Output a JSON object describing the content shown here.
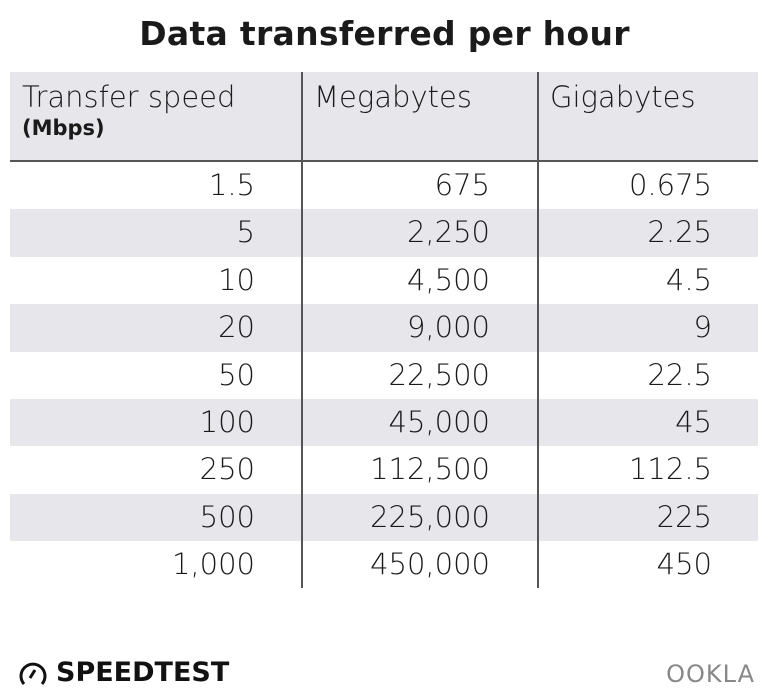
{
  "chart_data": {
    "type": "table",
    "title": "Data transferred per hour",
    "columns": [
      {
        "label": "Transfer speed",
        "sublabel": "(Mbps)"
      },
      {
        "label": "Megabytes"
      },
      {
        "label": "Gigabytes"
      }
    ],
    "rows": [
      [
        "1.5",
        "675",
        "0.675"
      ],
      [
        "5",
        "2,250",
        "2.25"
      ],
      [
        "10",
        "4,500",
        "4.5"
      ],
      [
        "20",
        "9,000",
        "9"
      ],
      [
        "50",
        "22,500",
        "22.5"
      ],
      [
        "100",
        "45,000",
        "45"
      ],
      [
        "250",
        "112,500",
        "112.5"
      ],
      [
        "500",
        "225,000",
        "225"
      ],
      [
        "1,000",
        "450,000",
        "450"
      ]
    ]
  },
  "footer": {
    "left_logo": "SPEEDTEST",
    "right_logo": "OOKLA"
  },
  "colors": {
    "row_alt": "#e6e6eb",
    "rule": "#555555"
  }
}
